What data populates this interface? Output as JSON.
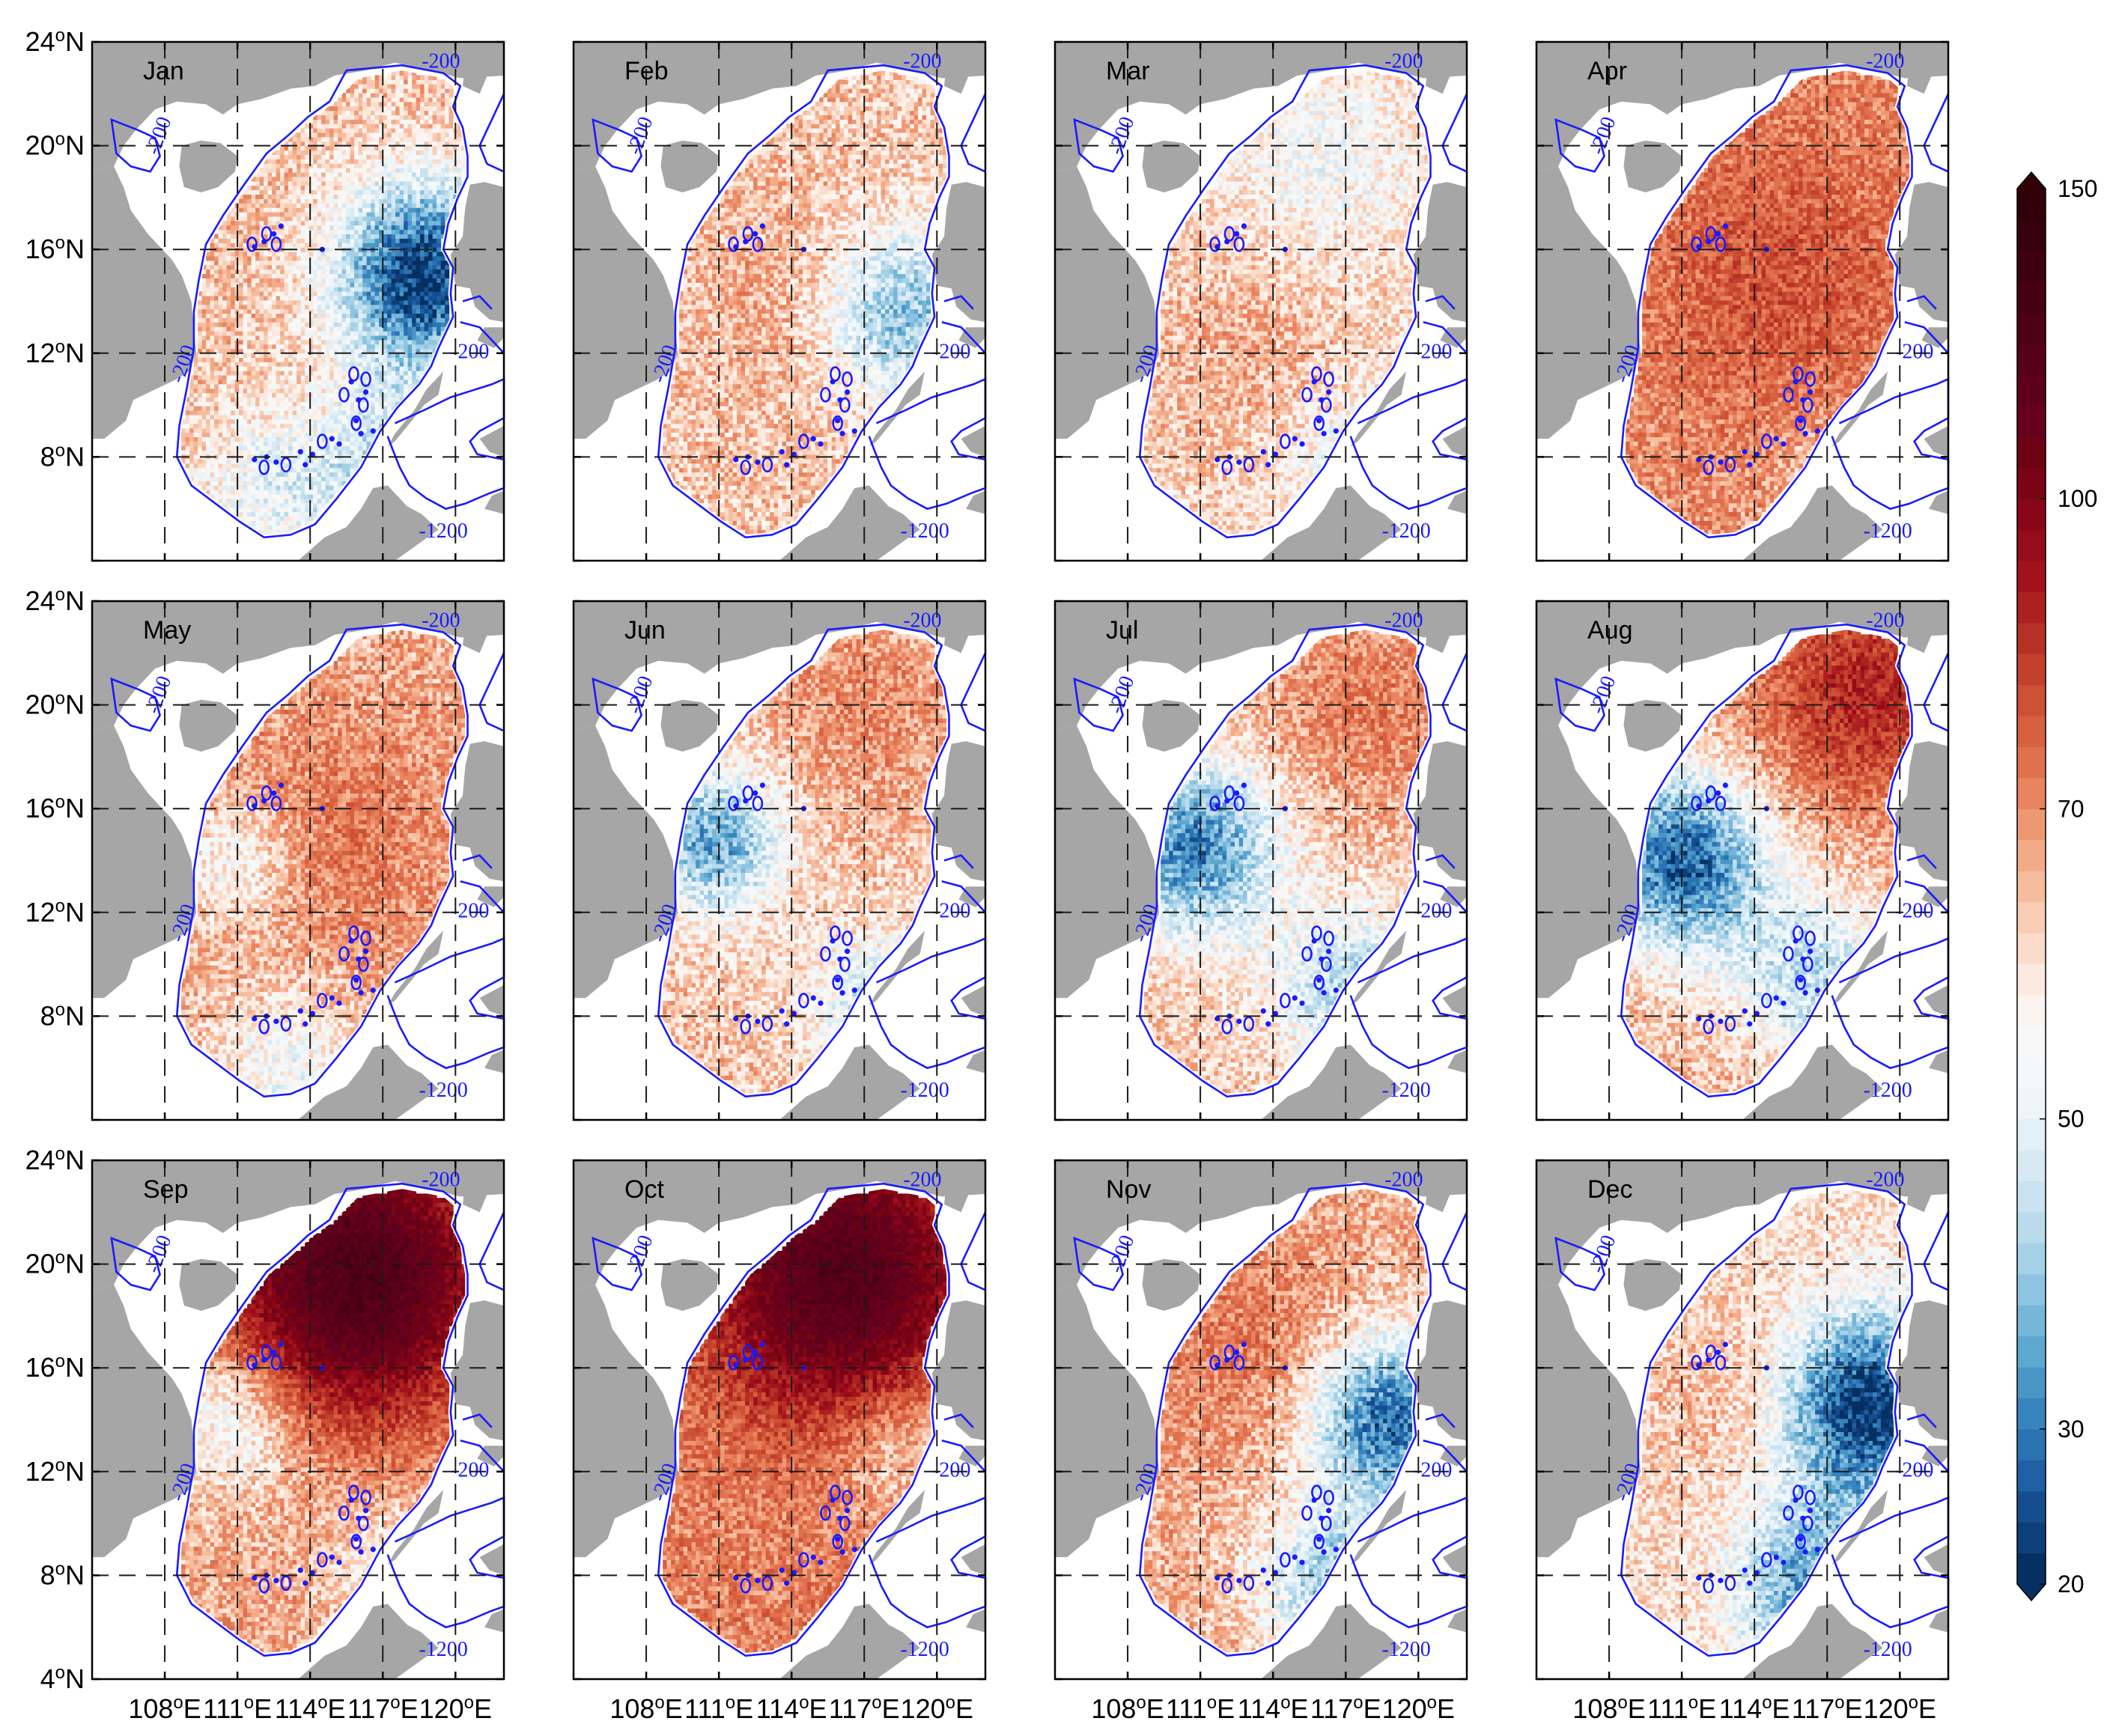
{
  "figure": {
    "type": "monthly-map-grid",
    "rows": 3,
    "cols": 4,
    "lon_range": [
      105,
      122
    ],
    "lat_range": [
      4,
      24
    ],
    "x_ticks": [
      {
        "value": 108,
        "label": "108°E"
      },
      {
        "value": 111,
        "label": "111°E"
      },
      {
        "value": 114,
        "label": "114°E"
      },
      {
        "value": 117,
        "label": "117°E"
      },
      {
        "value": 120,
        "label": "120°E"
      }
    ],
    "y_ticks": [
      {
        "value": 24,
        "label": "24°N"
      },
      {
        "value": 20,
        "label": "20°N"
      },
      {
        "value": 16,
        "label": "16°N"
      },
      {
        "value": 12,
        "label": "12°N"
      },
      {
        "value": 8,
        "label": "8°N"
      },
      {
        "value": 4,
        "label": "4°N"
      }
    ],
    "contour_labels": [
      "-200",
      "-200",
      "-200",
      "-200",
      "-1200"
    ],
    "colors": {
      "land": "#a6a6a6",
      "contour": "#1a1aff",
      "ocean_blank": "#ffffff"
    }
  },
  "panels": [
    {
      "month": "Jan",
      "base": 64,
      "features": [
        {
          "lon": 118.7,
          "lat": 15,
          "s": 2.6,
          "v": -42
        },
        {
          "lon": 117.5,
          "lat": 7,
          "s": 2.5,
          "v": -22
        },
        {
          "lon": 112,
          "lat": 7,
          "s": 2,
          "v": -12
        }
      ]
    },
    {
      "month": "Feb",
      "base": 63,
      "features": [
        {
          "lon": 118.5,
          "lat": 13.5,
          "s": 2.5,
          "v": -26
        },
        {
          "lon": 115,
          "lat": 14,
          "s": 3,
          "v": 6
        }
      ]
    },
    {
      "month": "Mar",
      "base": 61,
      "features": [
        {
          "lon": 116,
          "lat": 19.5,
          "s": 3,
          "v": -8
        },
        {
          "lon": 118,
          "lat": 7,
          "s": 2.5,
          "v": -14
        },
        {
          "lon": 113,
          "lat": 12,
          "s": 3,
          "v": 6
        }
      ]
    },
    {
      "month": "Apr",
      "base": 70,
      "features": [
        {
          "lon": 115,
          "lat": 15,
          "s": 4,
          "v": 10
        },
        {
          "lon": 118,
          "lat": 6.5,
          "s": 2.2,
          "v": -12
        }
      ]
    },
    {
      "month": "May",
      "base": 66,
      "features": [
        {
          "lon": 115,
          "lat": 15,
          "s": 3.5,
          "v": 8
        },
        {
          "lon": 111,
          "lat": 14,
          "s": 1.8,
          "v": -14
        },
        {
          "lon": 113,
          "lat": 6,
          "s": 2.2,
          "v": -14
        }
      ]
    },
    {
      "month": "Jun",
      "base": 63,
      "features": [
        {
          "lon": 110.8,
          "lat": 14.8,
          "s": 2,
          "v": -28
        },
        {
          "lon": 117.5,
          "lat": 8.5,
          "s": 2,
          "v": -16
        },
        {
          "lon": 117,
          "lat": 20,
          "s": 3,
          "v": 8
        }
      ]
    },
    {
      "month": "Jul",
      "base": 63,
      "features": [
        {
          "lon": 110.8,
          "lat": 14.5,
          "s": 2.4,
          "v": -32
        },
        {
          "lon": 117.3,
          "lat": 9,
          "s": 2.3,
          "v": -20
        },
        {
          "lon": 118,
          "lat": 20,
          "s": 3,
          "v": 10
        }
      ]
    },
    {
      "month": "Aug",
      "base": 65,
      "features": [
        {
          "lon": 111,
          "lat": 14,
          "s": 2.5,
          "v": -38
        },
        {
          "lon": 116.5,
          "lat": 9.5,
          "s": 2.4,
          "v": -20
        },
        {
          "lon": 118.5,
          "lat": 20.5,
          "s": 3,
          "v": 24
        }
      ]
    },
    {
      "month": "Sep",
      "base": 67,
      "features": [
        {
          "lon": 116,
          "lat": 19.5,
          "s": 3.5,
          "v": 62
        },
        {
          "lon": 110.8,
          "lat": 14,
          "s": 2,
          "v": -18
        },
        {
          "lon": 117.5,
          "lat": 8,
          "s": 2,
          "v": -12
        }
      ]
    },
    {
      "month": "Oct",
      "base": 72,
      "features": [
        {
          "lon": 116,
          "lat": 19.5,
          "s": 3.5,
          "v": 52
        },
        {
          "lon": 118.5,
          "lat": 13,
          "s": 2,
          "v": -14
        }
      ]
    },
    {
      "month": "Nov",
      "base": 66,
      "features": [
        {
          "lon": 118.8,
          "lat": 14,
          "s": 2.4,
          "v": -38
        },
        {
          "lon": 116.5,
          "lat": 7.5,
          "s": 2.2,
          "v": -26
        },
        {
          "lon": 113,
          "lat": 17,
          "s": 3,
          "v": 8
        }
      ]
    },
    {
      "month": "Dec",
      "base": 60,
      "features": [
        {
          "lon": 118.6,
          "lat": 14.5,
          "s": 2.6,
          "v": -40
        },
        {
          "lon": 116.5,
          "lat": 7.5,
          "s": 2.3,
          "v": -26
        },
        {
          "lon": 113.5,
          "lat": 15,
          "s": 3,
          "v": 6
        }
      ]
    }
  ],
  "colorbar": {
    "min": 20,
    "max": 150,
    "ticks": [
      20,
      30,
      50,
      70,
      100,
      150
    ],
    "boundaries": [
      20,
      22,
      24,
      26,
      28,
      30,
      32,
      34,
      36,
      38,
      40,
      42,
      44,
      46,
      48,
      50,
      52,
      54,
      56,
      58,
      60,
      62,
      64,
      66,
      68,
      70,
      73,
      76,
      79,
      82,
      85,
      88,
      91,
      94,
      97,
      100,
      105,
      110,
      115,
      120,
      125,
      130,
      135,
      140,
      145,
      150
    ],
    "colors": [
      "#053061",
      "#0c3f79",
      "#144e8f",
      "#1f5fa4",
      "#2a72b2",
      "#3784bd",
      "#4996c6",
      "#5da8d0",
      "#76b7d9",
      "#8fc4e0",
      "#a6d0e6",
      "#b9dbec",
      "#c9e3f0",
      "#d7eaf4",
      "#e3f0f7",
      "#edf5f9",
      "#f3f8fa",
      "#f8f8f8",
      "#fbf3ee",
      "#fce9df",
      "#fbdcca",
      "#f9ccb4",
      "#f6bc9e",
      "#f3aa88",
      "#ee9773",
      "#e8845f",
      "#e0714f",
      "#d6603f",
      "#cc5034",
      "#c2402c",
      "#b73025",
      "#ac2020",
      "#a1121c",
      "#940b1a",
      "#870718",
      "#7a0416",
      "#6d0214",
      "#67001f",
      "#5e001c",
      "#560019",
      "#4e0016",
      "#460013",
      "#3e0010",
      "#37000e",
      "#300009"
    ]
  }
}
